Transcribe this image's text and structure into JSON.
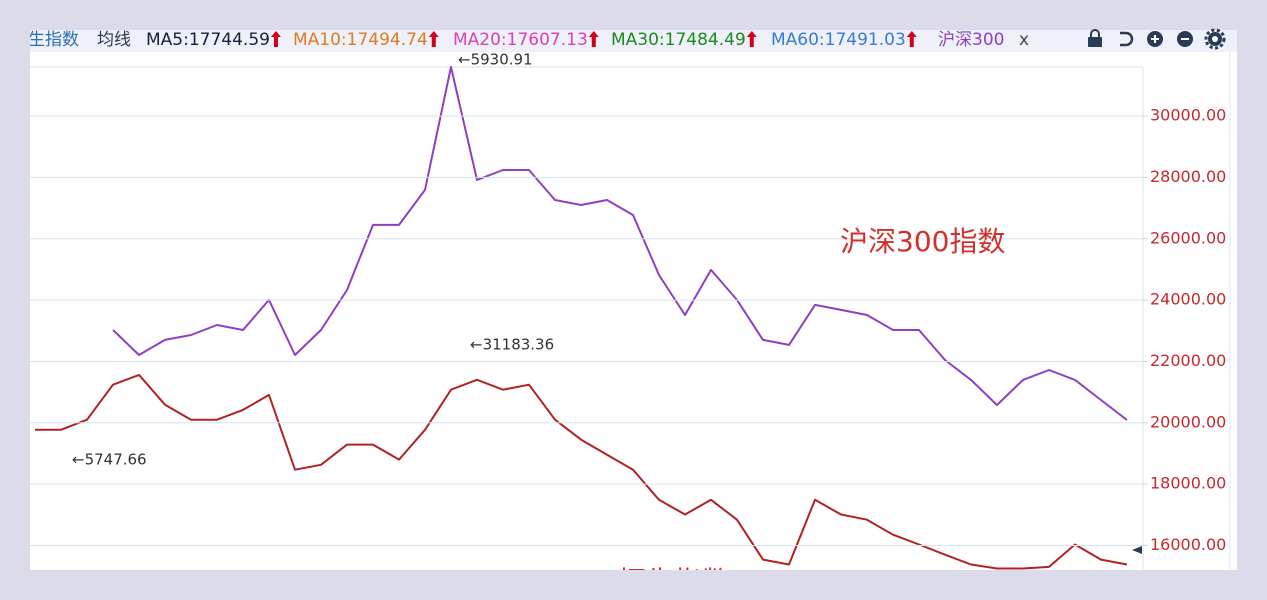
{
  "header": {
    "ma_label": "均线",
    "ma": [
      {
        "text": "MA5:17744.59",
        "color": "#14213d"
      },
      {
        "text": "MA10:17494.74",
        "color": "#e07b20"
      },
      {
        "text": "MA20:17607.13",
        "color": "#df3fb5"
      },
      {
        "text": "MA30:17484.49",
        "color": "#1c8a1c"
      },
      {
        "text": "MA60:17491.03",
        "color": "#3a7bd5"
      }
    ],
    "compare": "沪深300",
    "compare_color": "#8e3fc4",
    "close": "x"
  },
  "chart_data": {
    "type": "line",
    "grid": true,
    "ylim": [
      15200,
      31600
    ],
    "yticks": [
      {
        "value": 16000,
        "label": "16000.00"
      },
      {
        "value": 18000,
        "label": "18000.00"
      },
      {
        "value": 20000,
        "label": "20000.00"
      },
      {
        "value": 22000,
        "label": "22000.00"
      },
      {
        "value": 24000,
        "label": "24000.00"
      },
      {
        "value": 26000,
        "label": "26000.00"
      },
      {
        "value": 28000,
        "label": "28000.00"
      },
      {
        "value": 30000,
        "label": "30000.00"
      }
    ],
    "y2lim": [
      2800,
      5931
    ],
    "categories": [
      null,
      null,
      null,
      null,
      null,
      null,
      null,
      null,
      null,
      null,
      null,
      null,
      null,
      null,
      null,
      null,
      null,
      null,
      null,
      null,
      null,
      null,
      null,
      null,
      null,
      null,
      null,
      null,
      null,
      null,
      null,
      null,
      null,
      null,
      null,
      null,
      null,
      null,
      null,
      null,
      null,
      null,
      null
    ],
    "series": [
      {
        "name": "恒生指数",
        "color": "#b22222",
        "values": [
          19770,
          19770,
          20100,
          21240,
          21560,
          20590,
          20100,
          20100,
          20420,
          20910,
          18470,
          18630,
          19290,
          19290,
          18800,
          19770,
          21080,
          21400,
          21080,
          21240,
          20100,
          19450,
          18960,
          18470,
          17490,
          17010,
          17490,
          16840,
          15540,
          15380,
          17490,
          17010,
          16840,
          16350,
          16030,
          15700,
          15380,
          15250,
          15250,
          15300,
          16030,
          15540,
          15380
        ]
      },
      {
        "name": "沪深300指数",
        "color": "#8e3fc4",
        "axis": "y2",
        "values": [
          null,
          null,
          null,
          4294,
          4138,
          4232,
          4263,
          4325,
          4294,
          4481,
          4138,
          4294,
          4543,
          4948,
          4948,
          5166,
          5930.91,
          5228,
          5290,
          5290,
          5103,
          5072,
          5103,
          5010,
          4636,
          4387,
          4668,
          4481,
          4232,
          4201,
          4450,
          4419,
          4387,
          4294,
          4294,
          4107,
          3983,
          3827,
          3983,
          4045,
          3983,
          3858,
          3734
        ]
      }
    ],
    "annotations": [
      "←5930.91",
      "←31183.36",
      "←5747.66"
    ]
  }
}
